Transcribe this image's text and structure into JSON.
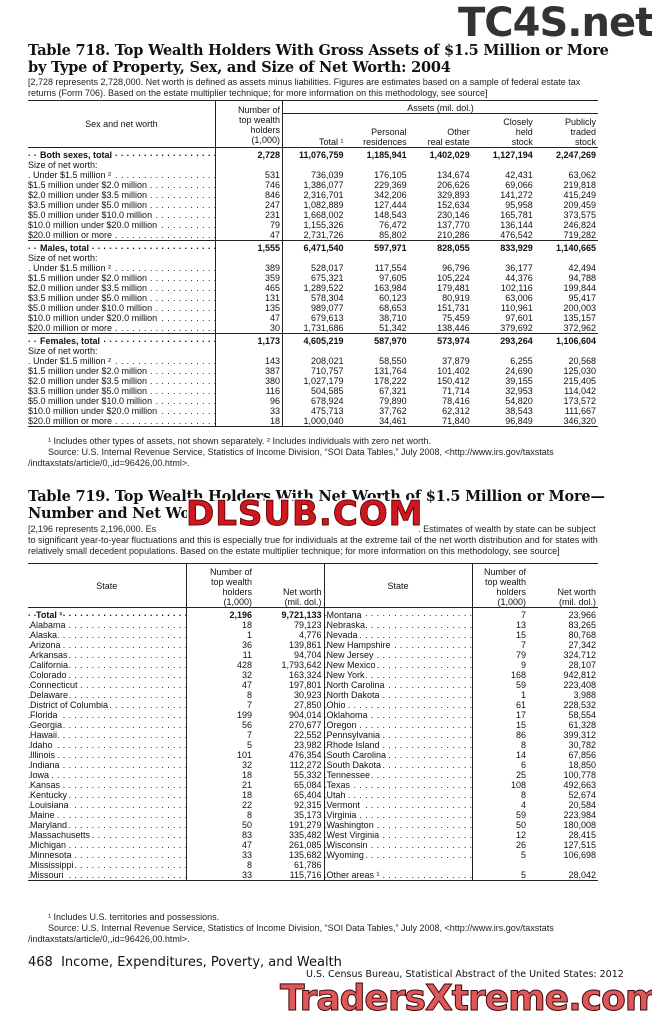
{
  "watermarks": {
    "top": "TC4S.net",
    "middle": "DLSUB.COM",
    "bottom": "TradersXtreme.com"
  },
  "table718": {
    "title_line1": "Table 718. Top Wealth Holders With Gross Assets of $1.5 Million or More",
    "title_line2": "by Type of Property, Sex, and Size of Net Worth: 2004",
    "note": "[2,728 represents 2,728,000. Net worth is defined as assets minus liabilities. Figures are estimates based on a sample of federal estate tax returns (Form 706). Based on the estate multiplier technique; for more information on this methodology, see source]",
    "headers": {
      "stub": "Sex and net worth",
      "holders": [
        "Number of",
        "top wealth",
        "holders",
        "(1,000)"
      ],
      "assets_group": "Assets (mil. dol.)",
      "total": "Total ¹",
      "personal": [
        "Personal",
        "residences"
      ],
      "other": [
        "Other",
        "real estate"
      ],
      "closely": [
        "Closely",
        "held",
        "stock"
      ],
      "publicly": [
        "Publicly",
        "traded",
        "stock"
      ]
    },
    "size_label": "Size of net worth:",
    "groups": [
      {
        "label": "Both sexes, total",
        "values": [
          "2,728",
          "11,076,759",
          "1,185,941",
          "1,402,029",
          "1,127,194",
          "2,247,269"
        ],
        "rows": [
          {
            "label": "Under $1.5 million ²",
            "values": [
              "531",
              "736,039",
              "176,105",
              "134,674",
              "42,431",
              "63,062"
            ]
          },
          {
            "label": "$1.5 million under $2.0 million",
            "values": [
              "746",
              "1,386,077",
              "229,369",
              "206,626",
              "69,066",
              "219,818"
            ]
          },
          {
            "label": "$2.0 million under $3.5 million",
            "values": [
              "846",
              "2,316,701",
              "342,206",
              "329,893",
              "141,272",
              "415,249"
            ]
          },
          {
            "label": "$3.5 million under $5.0 million",
            "values": [
              "247",
              "1,082,889",
              "127,444",
              "152,634",
              "95,958",
              "209,459"
            ]
          },
          {
            "label": "$5.0 million under $10.0 million",
            "values": [
              "231",
              "1,668,002",
              "148,543",
              "230,146",
              "165,781",
              "373,575"
            ]
          },
          {
            "label": "$10.0 million under $20.0 million",
            "values": [
              "79",
              "1,155,326",
              "76,472",
              "137,770",
              "136,144",
              "246,824"
            ]
          },
          {
            "label": "$20.0 million or more",
            "values": [
              "47",
              "2,731,726",
              "85,802",
              "210,286",
              "476,542",
              "719,282"
            ]
          }
        ]
      },
      {
        "label": "Males, total",
        "values": [
          "1,555",
          "6,471,540",
          "597,971",
          "828,055",
          "833,929",
          "1,140,665"
        ],
        "rows": [
          {
            "label": "Under $1.5 million ²",
            "values": [
              "389",
              "528,017",
              "117,554",
              "96,796",
              "36,177",
              "42,494"
            ]
          },
          {
            "label": "$1.5 million under $2.0 million",
            "values": [
              "359",
              "675,321",
              "97,605",
              "105,224",
              "44,376",
              "94,788"
            ]
          },
          {
            "label": "$2.0 million under $3.5 million",
            "values": [
              "465",
              "1,289,522",
              "163,984",
              "179,481",
              "102,116",
              "199,844"
            ]
          },
          {
            "label": "$3.5 million under $5.0 million",
            "values": [
              "131",
              "578,304",
              "60,123",
              "80,919",
              "63,006",
              "95,417"
            ]
          },
          {
            "label": "$5.0 million under $10.0 million",
            "values": [
              "135",
              "989,077",
              "68,653",
              "151,731",
              "110,961",
              "200,003"
            ]
          },
          {
            "label": "$10.0 million under $20.0 million",
            "values": [
              "47",
              "679,613",
              "38,710",
              "75,459",
              "97,601",
              "135,157"
            ]
          },
          {
            "label": "$20.0 million or more",
            "values": [
              "30",
              "1,731,686",
              "51,342",
              "138,446",
              "379,692",
              "372,962"
            ]
          }
        ]
      },
      {
        "label": "Females, total",
        "values": [
          "1,173",
          "4,605,219",
          "587,970",
          "573,974",
          "293,264",
          "1,106,604"
        ],
        "rows": [
          {
            "label": "Under $1.5 million ²",
            "values": [
              "143",
              "208,021",
              "58,550",
              "37,879",
              "6,255",
              "20,568"
            ]
          },
          {
            "label": "$1.5 million under $2.0 million",
            "values": [
              "387",
              "710,757",
              "131,764",
              "101,402",
              "24,690",
              "125,030"
            ]
          },
          {
            "label": "$2.0 million under $3.5 million",
            "values": [
              "380",
              "1,027,179",
              "178,222",
              "150,412",
              "39,155",
              "215,405"
            ]
          },
          {
            "label": "$3.5 million under $5.0 million",
            "values": [
              "116",
              "504,585",
              "67,321",
              "71,714",
              "32,953",
              "114,042"
            ]
          },
          {
            "label": "$5.0 million under $10.0 million",
            "values": [
              "96",
              "678,924",
              "79,890",
              "78,416",
              "54,820",
              "173,572"
            ]
          },
          {
            "label": "$10.0 million under $20.0 million",
            "values": [
              "33",
              "475,713",
              "37,762",
              "62,312",
              "38,543",
              "111,667"
            ]
          },
          {
            "label": "$20.0 million or more",
            "values": [
              "18",
              "1,000,040",
              "34,461",
              "71,840",
              "96,849",
              "346,320"
            ]
          }
        ]
      }
    ],
    "footnote": "¹ Includes other types of assets, not shown separately. ² Includes individuals with zero net worth.",
    "source": "Source: U.S. Internal Revenue Service, Statistics of Income Division, “SOI Data Tables,” July 2008, <http://www.irs.gov/taxstats /indtaxstats/article/0,,id=96426,00.html>."
  },
  "table719": {
    "title_line1": "Table 719. Top Wealth Holders With Net Worth of $1.5 Million or More—",
    "title_line2": "Number and Net Wo",
    "note_start": "[2,196 represents 2,196,000. Es",
    "note_rest": ". Estimates of wealth by state can be subject to significant year-to-year fluctuations and this is especially true for individuals at the extreme tail of the net worth distribution and for states with relatively small decedent populations. Based on the estate multiplier technique; for more information on this methodology, see source]",
    "headers": {
      "state": "State",
      "holders": [
        "Number of",
        "top wealth",
        "holders",
        "(1,000)"
      ],
      "networth": [
        "Net worth",
        "(mil. dol.)"
      ]
    },
    "left": [
      {
        "state": "Total ¹",
        "n": "2,196",
        "w": "9,721,133",
        "bold": true
      },
      {
        "state": "Alabama",
        "n": "18",
        "w": "79,123"
      },
      {
        "state": "Alaska",
        "n": "1",
        "w": "4,776"
      },
      {
        "state": "Arizona",
        "n": "36",
        "w": "139,861"
      },
      {
        "state": "Arkansas",
        "n": "11",
        "w": "94,704"
      },
      {
        "state": "California",
        "n": "428",
        "w": "1,793,642"
      },
      {
        "state": "Colorado",
        "n": "32",
        "w": "163,324"
      },
      {
        "state": "Connecticut",
        "n": "47",
        "w": "197,801"
      },
      {
        "state": "Delaware",
        "n": "8",
        "w": "30,923"
      },
      {
        "state": "District of Columbia",
        "n": "7",
        "w": "27,850"
      },
      {
        "state": "Florida",
        "n": "199",
        "w": "904,014"
      },
      {
        "state": "Georgia",
        "n": "56",
        "w": "270,677"
      },
      {
        "state": "Hawaii",
        "n": "7",
        "w": "22,552"
      },
      {
        "state": "Idaho",
        "n": "5",
        "w": "23,982"
      },
      {
        "state": "Illinois",
        "n": "101",
        "w": "476,354"
      },
      {
        "state": "Indiana",
        "n": "32",
        "w": "112,272"
      },
      {
        "state": "Iowa",
        "n": "18",
        "w": "55,332"
      },
      {
        "state": "Kansas",
        "n": "21",
        "w": "65,084"
      },
      {
        "state": "Kentucky",
        "n": "18",
        "w": "65,404"
      },
      {
        "state": "Louisiana",
        "n": "22",
        "w": "92,315"
      },
      {
        "state": "Maine",
        "n": "8",
        "w": "35,173"
      },
      {
        "state": "Maryland",
        "n": "50",
        "w": "191,279"
      },
      {
        "state": "Massachusetts",
        "n": "83",
        "w": "335,482"
      },
      {
        "state": "Michigan",
        "n": "47",
        "w": "261,085"
      },
      {
        "state": "Minnesota",
        "n": "33",
        "w": "135,682"
      },
      {
        "state": "Mississippi",
        "n": "8",
        "w": "61,786"
      },
      {
        "state": "Missouri",
        "n": "33",
        "w": "115,716"
      }
    ],
    "right": [
      {
        "state": "Montana",
        "n": "7",
        "w": "23,966"
      },
      {
        "state": "Nebraska",
        "n": "13",
        "w": "83,265"
      },
      {
        "state": "Nevada",
        "n": "15",
        "w": "80,768"
      },
      {
        "state": "New Hampshire",
        "n": "7",
        "w": "27,342"
      },
      {
        "state": "New Jersey",
        "n": "79",
        "w": "324,712"
      },
      {
        "state": "New Mexico",
        "n": "9",
        "w": "28,107"
      },
      {
        "state": "New York",
        "n": "168",
        "w": "942,812"
      },
      {
        "state": "North Carolina",
        "n": "59",
        "w": "223,408"
      },
      {
        "state": "North Dakota",
        "n": "1",
        "w": "3,988"
      },
      {
        "state": "Ohio",
        "n": "61",
        "w": "228,532"
      },
      {
        "state": "Oklahoma",
        "n": "17",
        "w": "58,554"
      },
      {
        "state": "Oregon",
        "n": "15",
        "w": "61,328"
      },
      {
        "state": "Pennsylvania",
        "n": "86",
        "w": "399,312"
      },
      {
        "state": "Rhode Island",
        "n": "8",
        "w": "30,782"
      },
      {
        "state": "South Carolina",
        "n": "14",
        "w": "67,856"
      },
      {
        "state": "South Dakota",
        "n": "6",
        "w": "18,850"
      },
      {
        "state": "Tennessee",
        "n": "25",
        "w": "100,778"
      },
      {
        "state": "Texas",
        "n": "108",
        "w": "492,663"
      },
      {
        "state": "Utah",
        "n": "8",
        "w": "52,674"
      },
      {
        "state": "Vermont",
        "n": "4",
        "w": "20,584"
      },
      {
        "state": "Virginia",
        "n": "59",
        "w": "223,984"
      },
      {
        "state": "Washington",
        "n": "50",
        "w": "180,008"
      },
      {
        "state": "West Virginia",
        "n": "12",
        "w": "28,415"
      },
      {
        "state": "Wisconsin",
        "n": "26",
        "w": "127,515"
      },
      {
        "state": "Wyoming",
        "n": "5",
        "w": "106,698"
      },
      {
        "state": "",
        "n": "",
        "w": ""
      },
      {
        "state": "Other areas ¹",
        "n": "5",
        "w": "28,042"
      }
    ],
    "footnote": "¹ Includes U.S. territories and possessions.",
    "source": "Source: U.S. Internal Revenue Service, Statistics of Income Division, “SOI Data Tables,” July 2008, <http://www.irs.gov/taxstats /indtaxstats/article/0,,id=96426,00.html>."
  },
  "footer": {
    "page_number": "468",
    "section": "Income, Expenditures, Poverty, and Wealth",
    "credit": "U.S. Census Bureau, Statistical Abstract of the United States: 2012"
  }
}
